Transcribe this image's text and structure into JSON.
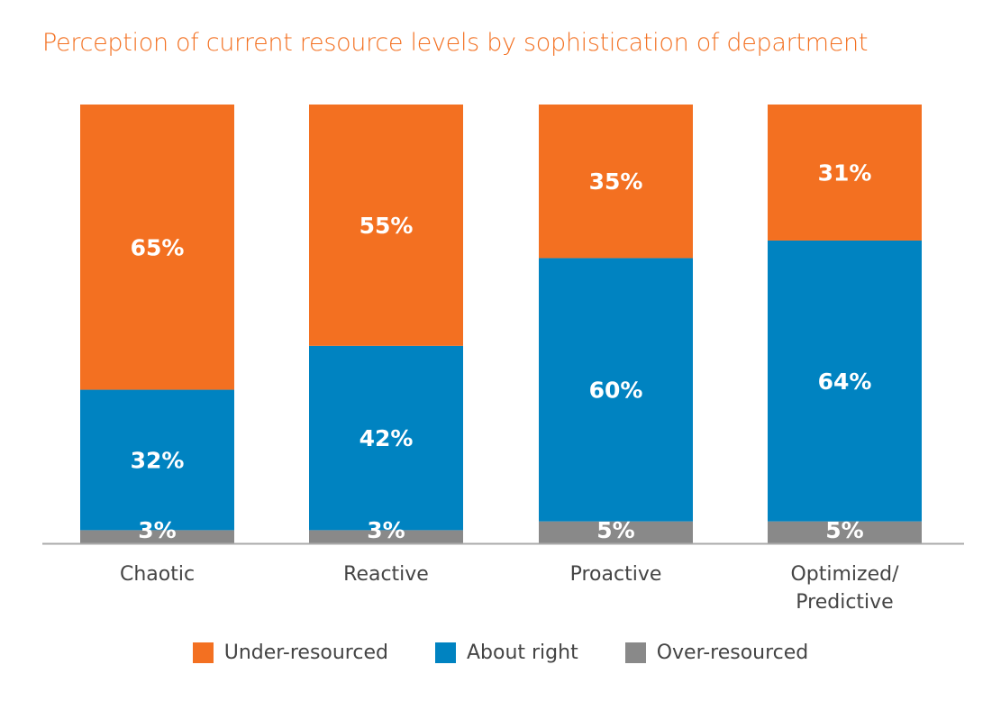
{
  "chart_data": {
    "type": "bar",
    "stacked": true,
    "title": "Perception of current resource levels by sophistication of department",
    "categories": [
      [
        "Chaotic"
      ],
      [
        "Reactive"
      ],
      [
        "Proactive"
      ],
      [
        "Optimized/",
        "Predictive"
      ]
    ],
    "series": [
      {
        "name": "Over-resourced",
        "color": "#898989",
        "values": [
          3,
          3,
          5,
          5
        ],
        "labels": [
          "3%",
          "3%",
          "5%",
          "5%"
        ]
      },
      {
        "name": "About right",
        "color": "#0083C1",
        "values": [
          32,
          42,
          60,
          64
        ],
        "labels": [
          "32%",
          "42%",
          "60%",
          "64%"
        ]
      },
      {
        "name": "Under-resourced",
        "color": "#F37021",
        "values": [
          65,
          55,
          35,
          31
        ],
        "labels": [
          "65%",
          "55%",
          "35%",
          "31%"
        ]
      }
    ],
    "legend_order": [
      "Under-resourced",
      "About right",
      "Over-resourced"
    ],
    "ylim": [
      0,
      100
    ],
    "legend_position": "bottom",
    "grid": false
  }
}
